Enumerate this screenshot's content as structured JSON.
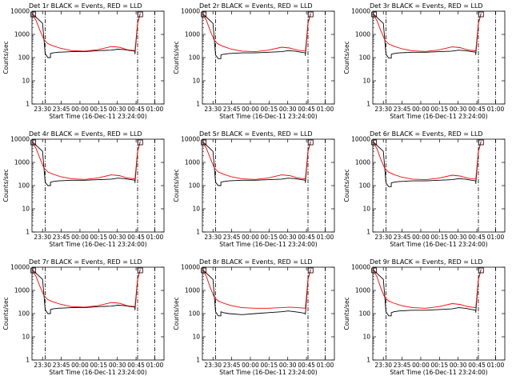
{
  "chart_data": [
    {
      "type": "line",
      "title": "Det 1r BLACK = Events, RED = LLD",
      "xlabel": "Start Time (16-Dec-11 23:24:00)",
      "ylabel": "Counts/sec",
      "yscale": "log",
      "ylim": [
        1,
        10000
      ],
      "xlim": [
        0,
        100
      ],
      "xticks": [
        "23:30",
        "23:45",
        "00:00",
        "00:15",
        "00:30",
        "00:45",
        "01:00"
      ],
      "yticks": [
        "1",
        "10",
        "100",
        "1000",
        "10000"
      ],
      "vlines": [
        10,
        80,
        93
      ],
      "gap": [
        14,
        78
      ],
      "series": [
        {
          "name": "Events",
          "color": "#000000",
          "x": [
            0,
            8,
            10,
            12,
            14,
            14,
            16,
            20,
            30,
            40,
            50,
            60,
            65,
            70,
            75,
            78,
            78,
            80,
            82
          ],
          "y": [
            8000,
            3000,
            150,
            100,
            100,
            150,
            160,
            170,
            180,
            180,
            200,
            210,
            230,
            220,
            200,
            190,
            140,
            3000,
            8000
          ]
        },
        {
          "name": "LLD",
          "color": "#ff0000",
          "x": [
            0,
            3,
            6,
            9,
            12,
            16,
            22,
            30,
            40,
            50,
            60,
            66,
            72,
            78,
            80,
            82
          ],
          "y": [
            8000,
            4000,
            1500,
            600,
            400,
            320,
            250,
            200,
            190,
            220,
            300,
            280,
            220,
            200,
            3000,
            8000
          ]
        }
      ]
    },
    {
      "type": "line",
      "title": "Det 2r BLACK = Events, RED = LLD",
      "xlabel": "Start Time (16-Dec-11 23:24:00)",
      "ylabel": "Counts/sec",
      "yscale": "log",
      "ylim": [
        1,
        10000
      ],
      "xlim": [
        0,
        100
      ],
      "xticks": [
        "23:30",
        "23:45",
        "00:00",
        "00:15",
        "00:30",
        "00:45",
        "01:00"
      ],
      "yticks": [
        "1",
        "10",
        "100",
        "1000",
        "10000"
      ],
      "vlines": [
        10,
        80,
        93
      ],
      "gap": [
        14,
        78
      ],
      "series": [
        {
          "name": "Events",
          "color": "#000000",
          "x": [
            0,
            8,
            10,
            12,
            14,
            14,
            16,
            20,
            30,
            40,
            50,
            60,
            65,
            70,
            75,
            78,
            78,
            80,
            82
          ],
          "y": [
            8000,
            3000,
            130,
            90,
            90,
            130,
            140,
            150,
            160,
            160,
            170,
            180,
            200,
            190,
            170,
            160,
            120,
            3000,
            8000
          ]
        },
        {
          "name": "LLD",
          "color": "#ff0000",
          "x": [
            0,
            3,
            6,
            9,
            12,
            16,
            22,
            30,
            40,
            50,
            60,
            66,
            72,
            78,
            80,
            82
          ],
          "y": [
            8000,
            4000,
            1400,
            550,
            380,
            300,
            230,
            190,
            180,
            210,
            280,
            260,
            210,
            190,
            3000,
            8000
          ]
        }
      ]
    },
    {
      "type": "line",
      "title": "Det 3r BLACK = Events, RED = LLD",
      "xlabel": "Start Time (16-Dec-11 23:24:00)",
      "ylabel": "Counts/sec",
      "yscale": "log",
      "ylim": [
        1,
        10000
      ],
      "xlim": [
        0,
        100
      ],
      "xticks": [
        "23:30",
        "23:45",
        "00:00",
        "00:15",
        "00:30",
        "00:45",
        "01:00"
      ],
      "yticks": [
        "1",
        "10",
        "100",
        "1000",
        "10000"
      ],
      "vlines": [
        10,
        80,
        93
      ],
      "gap": [
        14,
        78
      ],
      "series": [
        {
          "name": "Events",
          "color": "#000000",
          "x": [
            0,
            8,
            10,
            12,
            14,
            14,
            16,
            20,
            30,
            40,
            50,
            60,
            65,
            70,
            75,
            78,
            78,
            80,
            82
          ],
          "y": [
            8000,
            3000,
            140,
            95,
            95,
            140,
            150,
            160,
            170,
            170,
            180,
            190,
            210,
            200,
            180,
            170,
            130,
            3000,
            8000
          ]
        },
        {
          "name": "LLD",
          "color": "#ff0000",
          "x": [
            0,
            3,
            6,
            9,
            12,
            16,
            22,
            30,
            40,
            50,
            60,
            66,
            72,
            78,
            80,
            82
          ],
          "y": [
            8000,
            4000,
            1500,
            580,
            390,
            310,
            240,
            195,
            185,
            215,
            290,
            270,
            215,
            195,
            3000,
            8000
          ]
        }
      ]
    },
    {
      "type": "line",
      "title": "Det 4r BLACK = Events, RED = LLD",
      "xlabel": "Start Time (16-Dec-11 23:24:00)",
      "ylabel": "Counts/sec",
      "yscale": "log",
      "ylim": [
        1,
        10000
      ],
      "xlim": [
        0,
        100
      ],
      "xticks": [
        "23:30",
        "23:45",
        "00:00",
        "00:15",
        "00:30",
        "00:45",
        "01:00"
      ],
      "yticks": [
        "1",
        "10",
        "100",
        "1000",
        "10000"
      ],
      "vlines": [
        10,
        80,
        93
      ],
      "gap": [
        14,
        78
      ],
      "series": [
        {
          "name": "Events",
          "color": "#000000",
          "x": [
            0,
            8,
            10,
            12,
            14,
            14,
            16,
            20,
            30,
            40,
            50,
            60,
            65,
            70,
            75,
            78,
            78,
            80,
            82
          ],
          "y": [
            8000,
            3000,
            140,
            100,
            100,
            140,
            150,
            160,
            170,
            170,
            180,
            190,
            210,
            200,
            180,
            170,
            130,
            3000,
            8000
          ]
        },
        {
          "name": "LLD",
          "color": "#ff0000",
          "x": [
            0,
            3,
            6,
            9,
            12,
            16,
            22,
            30,
            40,
            50,
            60,
            66,
            72,
            78,
            80,
            82
          ],
          "y": [
            8000,
            4000,
            1500,
            580,
            390,
            310,
            240,
            195,
            185,
            215,
            290,
            270,
            215,
            195,
            3000,
            8000
          ]
        }
      ]
    },
    {
      "type": "line",
      "title": "Det 5r BLACK = Events, RED = LLD",
      "xlabel": "Start Time (16-Dec-11 23:24:00)",
      "ylabel": "Counts/sec",
      "yscale": "log",
      "ylim": [
        1,
        10000
      ],
      "xlim": [
        0,
        100
      ],
      "xticks": [
        "23:30",
        "23:45",
        "00:00",
        "00:15",
        "00:30",
        "00:45",
        "01:00"
      ],
      "yticks": [
        "1",
        "10",
        "100",
        "1000",
        "10000"
      ],
      "vlines": [
        10,
        80,
        93
      ],
      "gap": [
        14,
        78
      ],
      "series": [
        {
          "name": "Events",
          "color": "#000000",
          "x": [
            0,
            8,
            10,
            12,
            14,
            14,
            16,
            20,
            30,
            40,
            50,
            60,
            65,
            70,
            75,
            78,
            78,
            80,
            82
          ],
          "y": [
            8000,
            3000,
            140,
            100,
            100,
            140,
            150,
            160,
            170,
            170,
            180,
            190,
            210,
            200,
            180,
            170,
            130,
            3000,
            8000
          ]
        },
        {
          "name": "LLD",
          "color": "#ff0000",
          "x": [
            0,
            3,
            6,
            9,
            12,
            16,
            22,
            30,
            40,
            50,
            60,
            66,
            72,
            78,
            80,
            82
          ],
          "y": [
            8000,
            4000,
            1500,
            580,
            390,
            310,
            240,
            195,
            185,
            215,
            290,
            270,
            215,
            195,
            3000,
            8000
          ]
        }
      ]
    },
    {
      "type": "line",
      "title": "Det 6r BLACK = Events, RED = LLD",
      "xlabel": "Start Time (16-Dec-11 23:24:00)",
      "ylabel": "Counts/sec",
      "yscale": "log",
      "ylim": [
        1,
        10000
      ],
      "xlim": [
        0,
        100
      ],
      "xticks": [
        "23:30",
        "23:45",
        "00:00",
        "00:15",
        "00:30",
        "00:45",
        "01:00"
      ],
      "yticks": [
        "1",
        "10",
        "100",
        "1000",
        "10000"
      ],
      "vlines": [
        10,
        80,
        93
      ],
      "gap": [
        14,
        78
      ],
      "series": [
        {
          "name": "Events",
          "color": "#000000",
          "x": [
            0,
            8,
            10,
            12,
            14,
            14,
            16,
            20,
            30,
            40,
            50,
            60,
            65,
            70,
            75,
            78,
            78,
            80,
            82
          ],
          "y": [
            8000,
            3000,
            130,
            90,
            90,
            130,
            140,
            150,
            160,
            160,
            170,
            180,
            200,
            190,
            170,
            160,
            120,
            3000,
            8000
          ]
        },
        {
          "name": "LLD",
          "color": "#ff0000",
          "x": [
            0,
            3,
            6,
            9,
            12,
            16,
            22,
            30,
            40,
            50,
            60,
            66,
            72,
            78,
            80,
            82
          ],
          "y": [
            8000,
            4000,
            1400,
            550,
            380,
            300,
            230,
            190,
            180,
            210,
            280,
            260,
            210,
            190,
            3000,
            8000
          ]
        }
      ]
    },
    {
      "type": "line",
      "title": "Det 7r BLACK = Events, RED = LLD",
      "xlabel": "Start Time (16-Dec-11 23:24:00)",
      "ylabel": "Counts/sec",
      "yscale": "log",
      "ylim": [
        1,
        10000
      ],
      "xlim": [
        0,
        100
      ],
      "xticks": [
        "23:30",
        "23:45",
        "00:00",
        "00:15",
        "00:30",
        "00:45",
        "01:00"
      ],
      "yticks": [
        "1",
        "10",
        "100",
        "1000",
        "10000"
      ],
      "vlines": [
        10,
        80,
        93
      ],
      "gap": [
        14,
        78
      ],
      "series": [
        {
          "name": "Events",
          "color": "#000000",
          "x": [
            0,
            8,
            10,
            12,
            14,
            14,
            16,
            20,
            30,
            40,
            50,
            60,
            65,
            70,
            75,
            78,
            78,
            80,
            82
          ],
          "y": [
            8000,
            3000,
            150,
            100,
            100,
            150,
            160,
            170,
            180,
            180,
            200,
            210,
            230,
            220,
            200,
            190,
            140,
            3000,
            8000
          ]
        },
        {
          "name": "LLD",
          "color": "#ff0000",
          "x": [
            0,
            3,
            6,
            9,
            12,
            16,
            22,
            30,
            40,
            50,
            60,
            66,
            72,
            78,
            80,
            82
          ],
          "y": [
            8000,
            4000,
            1500,
            600,
            400,
            320,
            250,
            200,
            190,
            220,
            300,
            280,
            220,
            200,
            3000,
            8000
          ]
        }
      ]
    },
    {
      "type": "line",
      "title": "Det 8r BLACK = Events, RED = LLD",
      "xlabel": "Start Time (16-Dec-11 23:24:00)",
      "ylabel": "Counts/sec",
      "yscale": "log",
      "ylim": [
        1,
        10000
      ],
      "xlim": [
        0,
        100
      ],
      "xticks": [
        "23:30",
        "23:45",
        "00:00",
        "00:15",
        "00:30",
        "00:45",
        "01:00"
      ],
      "yticks": [
        "1",
        "10",
        "100",
        "1000",
        "10000"
      ],
      "vlines": [
        10,
        80,
        93
      ],
      "gap": [
        14,
        78
      ],
      "series": [
        {
          "name": "Events",
          "color": "#000000",
          "x": [
            0,
            8,
            10,
            12,
            14,
            14,
            16,
            20,
            30,
            40,
            50,
            60,
            65,
            70,
            75,
            78,
            78,
            80,
            82
          ],
          "y": [
            8000,
            3000,
            120,
            80,
            80,
            120,
            110,
            100,
            90,
            100,
            110,
            120,
            130,
            120,
            110,
            100,
            90,
            3000,
            8000
          ]
        },
        {
          "name": "LLD",
          "color": "#ff0000",
          "x": [
            0,
            3,
            6,
            9,
            12,
            16,
            22,
            30,
            40,
            50,
            60,
            66,
            72,
            78,
            80,
            82
          ],
          "y": [
            8000,
            4000,
            1300,
            500,
            350,
            280,
            220,
            180,
            170,
            170,
            180,
            190,
            180,
            170,
            3000,
            8000
          ]
        }
      ]
    },
    {
      "type": "line",
      "title": "Det 9r BLACK = Events, RED = LLD",
      "xlabel": "Start Time (16-Dec-11 23:24:00)",
      "ylabel": "Counts/sec",
      "yscale": "log",
      "ylim": [
        1,
        10000
      ],
      "xlim": [
        0,
        100
      ],
      "xticks": [
        "23:30",
        "23:45",
        "00:00",
        "00:15",
        "00:30",
        "00:45",
        "01:00"
      ],
      "yticks": [
        "1",
        "10",
        "100",
        "1000",
        "10000"
      ],
      "vlines": [
        10,
        80,
        93
      ],
      "gap": [
        14,
        78
      ],
      "series": [
        {
          "name": "Events",
          "color": "#000000",
          "x": [
            0,
            8,
            10,
            12,
            14,
            14,
            16,
            20,
            30,
            40,
            50,
            60,
            65,
            70,
            75,
            78,
            78,
            80,
            82
          ],
          "y": [
            8000,
            3000,
            120,
            80,
            80,
            110,
            120,
            130,
            140,
            140,
            150,
            160,
            180,
            170,
            150,
            140,
            110,
            3000,
            8000
          ]
        },
        {
          "name": "LLD",
          "color": "#ff0000",
          "x": [
            0,
            3,
            6,
            9,
            12,
            16,
            22,
            30,
            40,
            50,
            60,
            66,
            72,
            78,
            80,
            82
          ],
          "y": [
            8000,
            4000,
            1300,
            500,
            350,
            280,
            220,
            180,
            170,
            200,
            270,
            250,
            200,
            180,
            3000,
            8000
          ]
        }
      ]
    }
  ]
}
